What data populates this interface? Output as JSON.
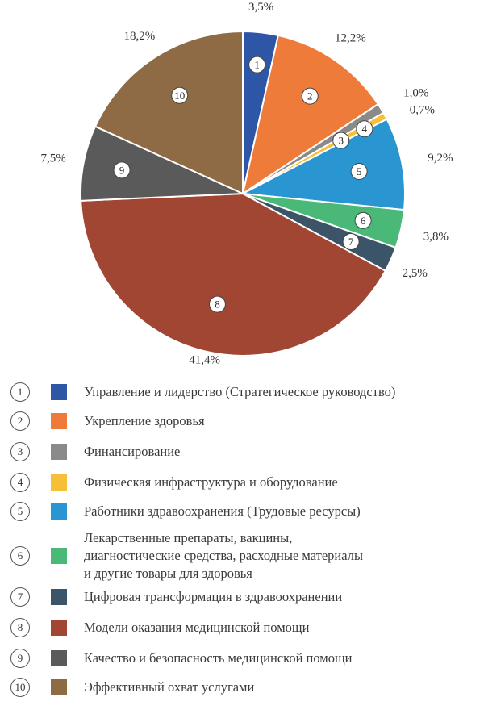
{
  "chart_data": {
    "type": "pie",
    "title": "",
    "slices": [
      {
        "marker": "1",
        "label": "Управление и лидерство (Стратегическое руководство)",
        "value": 3.5,
        "value_label": "3,5%",
        "color": "#2e56a7"
      },
      {
        "marker": "2",
        "label": "Укрепление здоровья",
        "value": 12.2,
        "value_label": "12,2%",
        "color": "#ef7b3a"
      },
      {
        "marker": "3",
        "label": "Финансирование",
        "value": 1.0,
        "value_label": "1,0%",
        "color": "#8a8a8a"
      },
      {
        "marker": "4",
        "label": "Физическая инфраструктура и оборудование",
        "value": 0.7,
        "value_label": "0,7%",
        "color": "#f6bf38"
      },
      {
        "marker": "5",
        "label": "Работники здравоохранения (Трудовые ресурсы)",
        "value": 9.2,
        "value_label": "9,2%",
        "color": "#2a96d1"
      },
      {
        "marker": "6",
        "label": "Лекарственные препараты, вакцины,\nдиагностические средства, расходные материалы\nи другие товары для здоровья",
        "value": 3.8,
        "value_label": "3,8%",
        "color": "#4ab877"
      },
      {
        "marker": "7",
        "label": "Цифровая трансформация в здравоохранении",
        "value": 2.5,
        "value_label": "2,5%",
        "color": "#3b5467"
      },
      {
        "marker": "8",
        "label": "Модели оказания медицинской помощи",
        "value": 41.4,
        "value_label": "41,4%",
        "color": "#a24634"
      },
      {
        "marker": "9",
        "label": "Качество и безопасность медицинской помощи",
        "value": 7.5,
        "value_label": "7,5%",
        "color": "#5a5a5a"
      },
      {
        "marker": "10",
        "label": "Эффективный охват услугами",
        "value": 18.2,
        "value_label": "18,2%",
        "color": "#8e6a45"
      }
    ],
    "legend_position": "bottom"
  }
}
